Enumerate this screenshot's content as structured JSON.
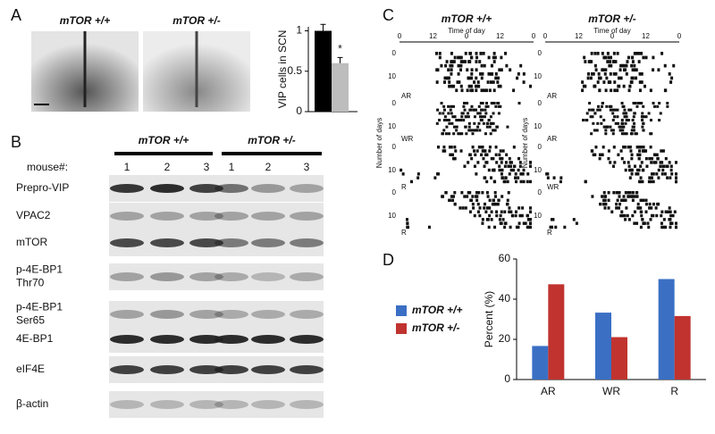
{
  "panel_labels": [
    "A",
    "B",
    "C",
    "D"
  ],
  "panel_a": {
    "images": [
      "mTOR +/+",
      "mTOR +/-"
    ]
  },
  "panel_b": {
    "groups": [
      "mTOR +/+",
      "mTOR +/-"
    ],
    "mouse_label": "mouse#:",
    "mice": [
      1,
      2,
      3,
      1,
      2,
      3
    ],
    "rows": [
      [
        "Prepro-VIP"
      ],
      [
        "VPAC2"
      ],
      [
        "mTOR"
      ],
      [
        "p-4E-BP1",
        "Thr70"
      ],
      [
        "p-4E-BP1",
        "Ser65"
      ],
      [
        "4E-BP1"
      ],
      [
        "eIF4E"
      ],
      [
        "β-actin"
      ]
    ]
  },
  "panel_c": {
    "columns": [
      {
        "title": "mTOR +/+",
        "blocks": [
          "AR",
          "WR",
          "R",
          "R"
        ]
      },
      {
        "title": "mTOR +/-",
        "blocks": [
          "AR",
          "AR",
          "WR",
          "R"
        ]
      }
    ],
    "x_label": "Time of day",
    "xticks": [
      0,
      12,
      0,
      12,
      0
    ],
    "y_label": "Number of days",
    "yticks": [
      0,
      10
    ]
  },
  "chart_data": [
    {
      "type": "bar",
      "ylabel": "VIP cells in SCN",
      "categories": [
        null,
        null
      ],
      "values": [
        1.0,
        0.6
      ],
      "errors": [
        0.08,
        0.07
      ],
      "colors": [
        "#000000",
        "#bdbdbd"
      ],
      "annotations": [
        null,
        "*"
      ],
      "ylim": [
        0,
        1.05
      ],
      "yticks": [
        0,
        0.5,
        1
      ]
    },
    {
      "type": "bar",
      "ylabel": "Percent (%)",
      "categories": [
        "AR",
        "WR",
        "R"
      ],
      "series": [
        {
          "name": "mTOR +/+",
          "color": "#3a6fc4",
          "values": [
            16.7,
            33.3,
            50
          ]
        },
        {
          "name": "mTOR +/-",
          "color": "#c0332f",
          "values": [
            47.4,
            21.1,
            31.6
          ]
        }
      ],
      "ylim": [
        0,
        60
      ],
      "yticks": [
        0,
        20,
        40,
        60
      ],
      "legend": "left"
    }
  ]
}
